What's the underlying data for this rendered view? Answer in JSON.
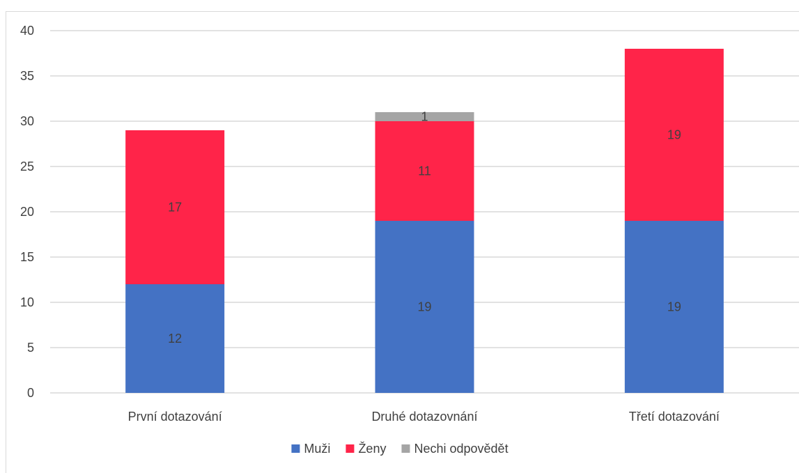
{
  "chart_data": {
    "type": "bar",
    "stacked": true,
    "categories": [
      "První dotazování",
      "Druhé dotazovnání",
      "Třetí dotazování"
    ],
    "series": [
      {
        "name": "Muži",
        "values": [
          12,
          19,
          19
        ],
        "color": "#4472c4"
      },
      {
        "name": "Ženy",
        "values": [
          17,
          11,
          19
        ],
        "color": "#ff2449"
      },
      {
        "name": "Nechi odpovědět",
        "values": [
          0,
          1,
          0
        ],
        "color": "#a5a5a5"
      }
    ],
    "data_labels": [
      [
        "12",
        "19",
        "19"
      ],
      [
        "17",
        "11",
        "19"
      ],
      [
        "",
        "1",
        ""
      ]
    ],
    "y_ticks": [
      "0",
      "5",
      "10",
      "15",
      "20",
      "25",
      "30",
      "35",
      "40"
    ],
    "ylim": [
      0,
      40
    ],
    "grid": true,
    "legend_position": "bottom"
  }
}
